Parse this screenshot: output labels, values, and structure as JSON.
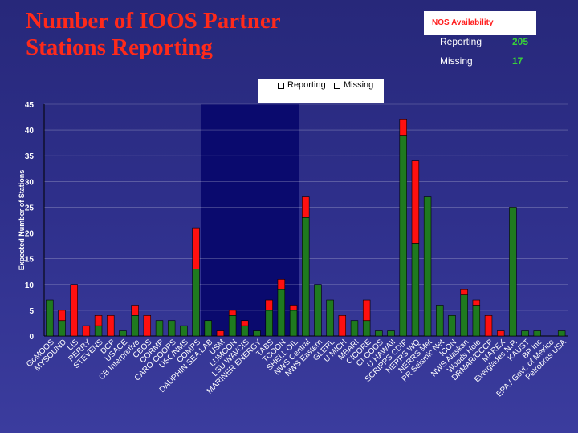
{
  "title": {
    "line1": "Number of IOOS Partner",
    "line2": "Stations Reporting"
  },
  "nos_availability": {
    "header": "NOS Availability",
    "reporting_label": "Reporting",
    "reporting_value": "205",
    "missing_label": "Missing",
    "missing_value": "17"
  },
  "colors": {
    "reporting": "#1f7a1f",
    "missing": "#ff1010",
    "highlight": "#0a0a6e",
    "title": "#ff2a1a"
  },
  "chart_data": {
    "type": "bar",
    "stacked": true,
    "ylabel": "Expected Number of Stations",
    "ylim": [
      0,
      45
    ],
    "yticks": [
      0,
      5,
      10,
      15,
      20,
      25,
      30,
      35,
      40,
      45
    ],
    "legend": [
      "Reporting",
      "Missing"
    ],
    "legend_position": "top",
    "grid": true,
    "highlight_range": [
      "DAUPHIN SEA LAB",
      "SHELL OIL"
    ],
    "categories": [
      "GoMOOS",
      "MYSOUND",
      "LIS",
      "PERRY",
      "STEVENS",
      "DCP",
      "USACE",
      "CB Interpretive",
      "CBOS",
      "CORMP",
      "CARO-COOPS",
      "USC/NMS",
      "COMPS",
      "DAUPHIN SEA LAB",
      "USM",
      "LUMCON",
      "LSU WAVCIS",
      "MARINER ENERGY",
      "TABS",
      "TCOON",
      "SHELL OIL",
      "NWS Central",
      "NWS Eastern",
      "GLERL",
      "U MICH",
      "MBARI",
      "CICORE",
      "CI-COOS",
      "U HAWAII",
      "SCRIPPS CDIP",
      "NERRS WQ",
      "NERRS Met",
      "PR Seismic Net",
      "ICON",
      "NWS Alaskan",
      "Woods Hole",
      "DRMAR/CCCP",
      "MAREX",
      "Everglades N.P.",
      "KAUST",
      "BP Inc",
      "EPA / Govt. of Mexico",
      "Petrobras USA"
    ],
    "series": [
      {
        "name": "Reporting",
        "values": [
          7,
          3,
          0,
          0,
          2,
          0,
          1,
          4,
          0,
          3,
          3,
          2,
          13,
          3,
          0,
          4,
          2,
          1,
          5,
          9,
          5,
          23,
          10,
          7,
          0,
          3,
          3,
          1,
          1,
          39,
          18,
          27,
          6,
          4,
          8,
          6,
          0,
          0,
          25,
          1,
          1,
          0,
          1
        ]
      },
      {
        "name": "Missing",
        "values": [
          0,
          2,
          10,
          2,
          2,
          4,
          0,
          2,
          4,
          0,
          0,
          0,
          8,
          0,
          1,
          1,
          1,
          0,
          2,
          2,
          1,
          4,
          0,
          0,
          4,
          0,
          4,
          0,
          0,
          3,
          16,
          0,
          0,
          0,
          1,
          1,
          4,
          1,
          0,
          0,
          0,
          0,
          0
        ]
      }
    ]
  }
}
